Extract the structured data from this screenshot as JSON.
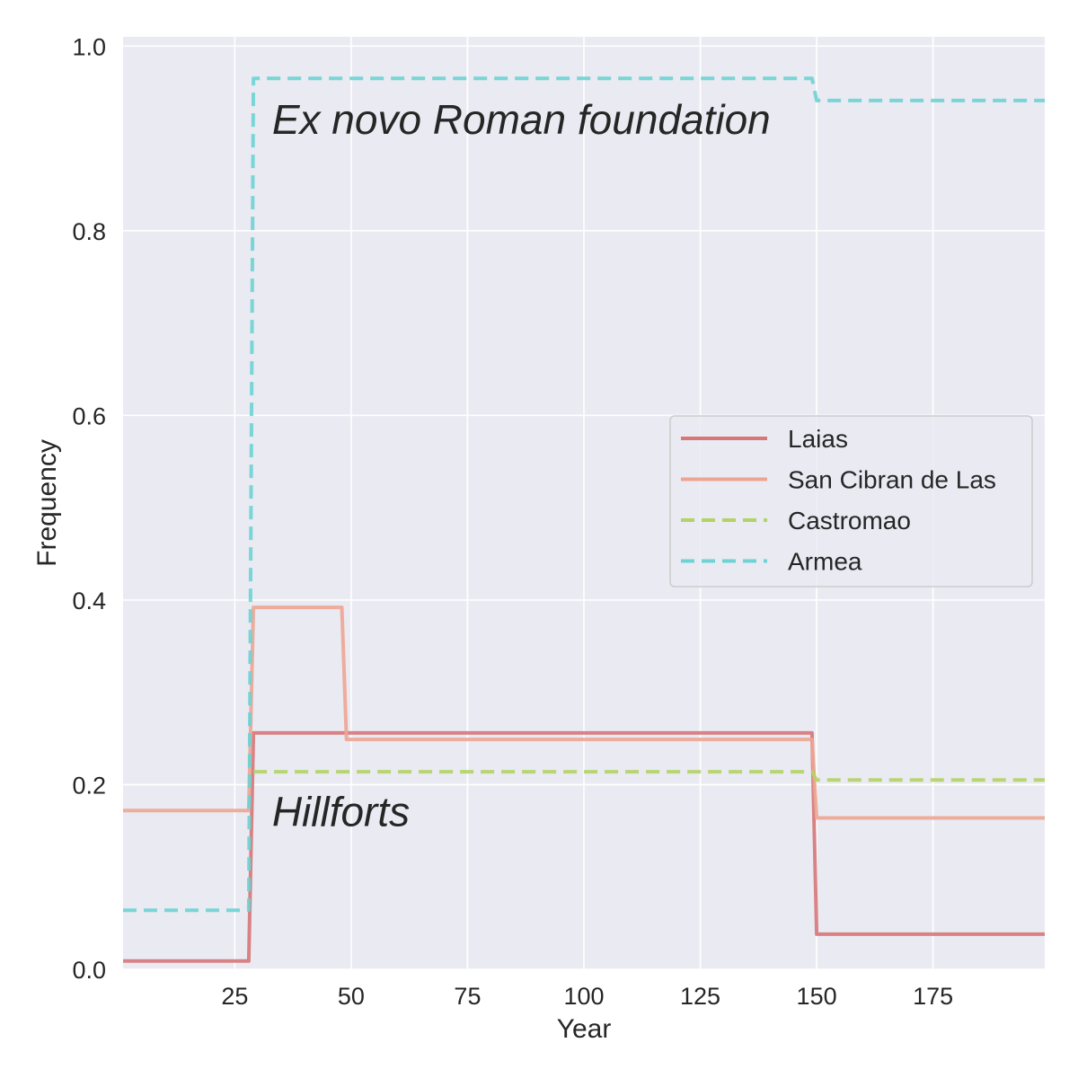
{
  "chart_data": {
    "type": "line",
    "xlabel": "Year",
    "ylabel": "Frequency",
    "xlim": [
      1,
      199
    ],
    "ylim": [
      0,
      1.01
    ],
    "grid": true,
    "legend_position": "center-right",
    "x_ticks": [
      {
        "value": 25,
        "label": "25"
      },
      {
        "value": 50,
        "label": "50"
      },
      {
        "value": 75,
        "label": "75"
      },
      {
        "value": 100,
        "label": "100"
      },
      {
        "value": 125,
        "label": "125"
      },
      {
        "value": 150,
        "label": "150"
      },
      {
        "value": 175,
        "label": "175"
      }
    ],
    "y_ticks": [
      {
        "value": 0.0,
        "label": "0.0"
      },
      {
        "value": 0.2,
        "label": "0.2"
      },
      {
        "value": 0.4,
        "label": "0.4"
      },
      {
        "value": 0.6,
        "label": "0.6"
      },
      {
        "value": 0.8,
        "label": "0.8"
      },
      {
        "value": 1.0,
        "label": "1.0"
      }
    ],
    "series": [
      {
        "name": "Laias",
        "color": "#d67778",
        "dash": "solid",
        "points": [
          [
            1,
            0.009
          ],
          [
            28,
            0.009
          ],
          [
            29,
            0.256
          ],
          [
            149,
            0.256
          ],
          [
            150,
            0.038
          ],
          [
            199,
            0.038
          ]
        ]
      },
      {
        "name": "San Cibran de Las",
        "color": "#eda592",
        "dash": "solid",
        "points": [
          [
            1,
            0.172
          ],
          [
            28,
            0.172
          ],
          [
            29,
            0.392
          ],
          [
            48,
            0.392
          ],
          [
            49,
            0.249
          ],
          [
            149,
            0.249
          ],
          [
            150,
            0.164
          ],
          [
            199,
            0.164
          ]
        ]
      },
      {
        "name": "Castromao",
        "color": "#b2d365",
        "dash": "dashed",
        "points": [
          [
            29,
            0.214
          ],
          [
            149,
            0.214
          ],
          [
            150,
            0.205
          ],
          [
            199,
            0.205
          ]
        ]
      },
      {
        "name": "Armea",
        "color": "#6dd3d3",
        "dash": "dashed",
        "points": [
          [
            1,
            0.064
          ],
          [
            28,
            0.064
          ],
          [
            29,
            0.965
          ],
          [
            149,
            0.965
          ],
          [
            150,
            0.941
          ],
          [
            199,
            0.941
          ]
        ]
      }
    ],
    "annotations": [
      {
        "text": "Ex novo Roman foundation",
        "x": 33,
        "y": 0.905
      },
      {
        "text": "Hillforts",
        "x": 33,
        "y": 0.155
      }
    ]
  }
}
